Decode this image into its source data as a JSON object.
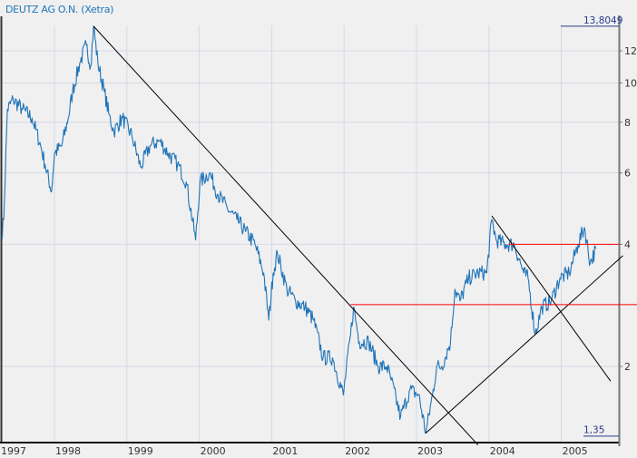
{
  "chart_data": {
    "type": "line",
    "title": "DEUTZ AG O.N. (Xetra)",
    "xlabel": "",
    "ylabel": "",
    "y_scale": "log",
    "ylim": [
      1.3,
      14.2
    ],
    "xlim": [
      1997.27,
      2005.85
    ],
    "grid": true,
    "x_ticks": [
      "1997",
      "1998",
      "1999",
      "2000",
      "2001",
      "2002",
      "2003",
      "2004",
      "2005"
    ],
    "x_tick_values": [
      1997,
      1998,
      1999,
      2000,
      2001,
      2002,
      2003,
      2004,
      2005
    ],
    "y_ticks": [
      2,
      4,
      6,
      8,
      10,
      12
    ],
    "max_label": "13,8049",
    "min_label": "1,35",
    "max_value": 13.8049,
    "min_value": 1.35,
    "series": [
      {
        "color": "#1f74b8",
        "points": [
          [
            1997.27,
            4.2
          ],
          [
            1997.3,
            4.6
          ],
          [
            1997.35,
            8.6
          ],
          [
            1997.43,
            9.1
          ],
          [
            1997.56,
            8.6
          ],
          [
            1997.69,
            8.2
          ],
          [
            1997.81,
            7.0
          ],
          [
            1997.87,
            6.3
          ],
          [
            1997.96,
            5.4
          ],
          [
            1998.0,
            6.7
          ],
          [
            1998.1,
            7.0
          ],
          [
            1998.19,
            8.2
          ],
          [
            1998.25,
            9.5
          ],
          [
            1998.35,
            11.2
          ],
          [
            1998.44,
            12.4
          ],
          [
            1998.5,
            11.0
          ],
          [
            1998.54,
            13.8
          ],
          [
            1998.6,
            11.2
          ],
          [
            1998.69,
            9.5
          ],
          [
            1998.75,
            8.4
          ],
          [
            1998.82,
            7.6
          ],
          [
            1998.94,
            8.2
          ],
          [
            1999.07,
            7.4
          ],
          [
            1999.19,
            6.2
          ],
          [
            1999.32,
            7.0
          ],
          [
            1999.45,
            7.2
          ],
          [
            1999.57,
            6.7
          ],
          [
            1999.7,
            6.3
          ],
          [
            1999.82,
            5.7
          ],
          [
            1999.95,
            4.1
          ],
          [
            2000.01,
            5.7
          ],
          [
            2000.14,
            6.0
          ],
          [
            2000.26,
            5.3
          ],
          [
            2000.39,
            4.9
          ],
          [
            2000.52,
            4.6
          ],
          [
            2000.64,
            4.3
          ],
          [
            2000.77,
            4.0
          ],
          [
            2000.89,
            3.4
          ],
          [
            2000.96,
            2.6
          ],
          [
            2001.02,
            3.4
          ],
          [
            2001.08,
            3.8
          ],
          [
            2001.21,
            3.1
          ],
          [
            2001.33,
            2.9
          ],
          [
            2001.46,
            2.8
          ],
          [
            2001.58,
            2.6
          ],
          [
            2001.71,
            2.1
          ],
          [
            2001.84,
            2.1
          ],
          [
            2001.99,
            1.7
          ],
          [
            2002.09,
            2.4
          ],
          [
            2002.13,
            2.8
          ],
          [
            2002.21,
            2.3
          ],
          [
            2002.34,
            2.3
          ],
          [
            2002.47,
            2.0
          ],
          [
            2002.59,
            2.0
          ],
          [
            2002.65,
            1.85
          ],
          [
            2002.78,
            1.5
          ],
          [
            2002.91,
            1.75
          ],
          [
            2003.03,
            1.7
          ],
          [
            2003.13,
            1.37
          ],
          [
            2003.22,
            1.7
          ],
          [
            2003.28,
            2.0
          ],
          [
            2003.35,
            2.0
          ],
          [
            2003.47,
            2.3
          ],
          [
            2003.53,
            3.1
          ],
          [
            2003.6,
            2.9
          ],
          [
            2003.72,
            3.3
          ],
          [
            2003.85,
            3.4
          ],
          [
            2003.97,
            3.4
          ],
          [
            2004.04,
            4.6
          ],
          [
            2004.1,
            4.1
          ],
          [
            2004.23,
            4.0
          ],
          [
            2004.35,
            4.0
          ],
          [
            2004.48,
            3.4
          ],
          [
            2004.54,
            3.3
          ],
          [
            2004.64,
            2.4
          ],
          [
            2004.73,
            2.8
          ],
          [
            2004.86,
            2.9
          ],
          [
            2004.98,
            3.3
          ],
          [
            2005.11,
            3.4
          ],
          [
            2005.23,
            4.0
          ],
          [
            2005.32,
            4.4
          ],
          [
            2005.4,
            3.6
          ],
          [
            2005.48,
            3.9
          ]
        ]
      }
    ],
    "trendlines": [
      {
        "color": "#000000",
        "from": [
          1998.54,
          13.8
        ],
        "to": [
          2003.85,
          1.28
        ]
      },
      {
        "color": "#000000",
        "from": [
          2003.13,
          1.37
        ],
        "to": [
          2005.85,
          3.75
        ]
      },
      {
        "color": "#000000",
        "from": [
          2004.04,
          4.7
        ],
        "to": [
          2005.68,
          1.84
        ]
      }
    ],
    "horizontal_lines": [
      {
        "color": "#ff0000",
        "value": 2.84,
        "from": 2002.09
      },
      {
        "color": "#ff0000",
        "value": 4.0,
        "from": 2004.27
      }
    ]
  }
}
